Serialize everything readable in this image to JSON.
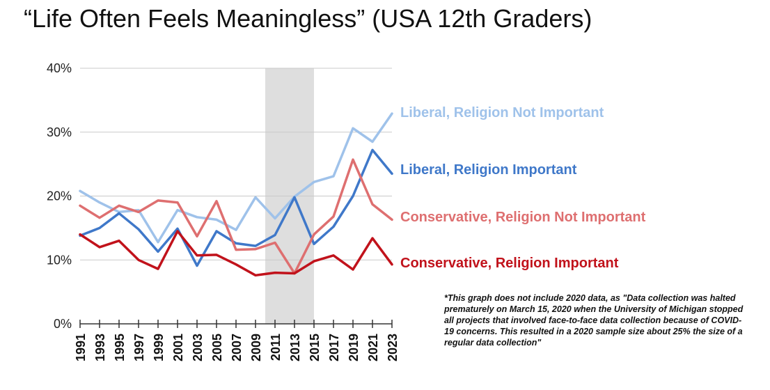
{
  "chart_data": {
    "type": "line",
    "title": "“Life Often Feels Meaningless” (USA 12th Graders)",
    "xlabel": "",
    "ylabel": "",
    "x": [
      1991,
      1992,
      1993,
      1994,
      1995,
      1996,
      1997,
      1998,
      1999,
      2000,
      2001,
      2002,
      2003,
      2004,
      2005,
      2006,
      2007,
      2008,
      2009,
      2010,
      2011,
      2012,
      2013,
      2014,
      2015,
      2016,
      2017,
      2018,
      2019,
      2020,
      2021,
      2022,
      2023
    ],
    "x_tick_labels": [
      "1991",
      "1993",
      "1995",
      "1997",
      "1999",
      "2001",
      "2003",
      "2005",
      "2007",
      "2009",
      "2011",
      "2013",
      "2015",
      "2017",
      "2019",
      "2021",
      "2023"
    ],
    "y_ticks": [
      "0%",
      "10%",
      "20%",
      "30%",
      "40%"
    ],
    "ylim": [
      0,
      40
    ],
    "grid": true,
    "shaded_region": [
      2010,
      2015
    ],
    "legend": "direct labels at right end of lines",
    "series": [
      {
        "name": "Liberal, Religion Not Important",
        "color": "#9fc2ea",
        "points": [
          [
            1991,
            20.8
          ],
          [
            1993,
            19.0
          ],
          [
            1995,
            17.5
          ],
          [
            1997,
            17.8
          ],
          [
            1999,
            12.8
          ],
          [
            2001,
            17.8
          ],
          [
            2003,
            16.7
          ],
          [
            2005,
            16.3
          ],
          [
            2007,
            14.7
          ],
          [
            2009,
            19.8
          ],
          [
            2011,
            16.5
          ],
          [
            2013,
            19.9
          ],
          [
            2015,
            22.2
          ],
          [
            2017,
            23.1
          ],
          [
            2019,
            30.6
          ],
          [
            2021,
            28.5
          ],
          [
            2023,
            32.9
          ]
        ]
      },
      {
        "name": "Liberal, Religion Important",
        "color": "#3f78c9",
        "points": [
          [
            1991,
            13.8
          ],
          [
            1993,
            15.0
          ],
          [
            1995,
            17.3
          ],
          [
            1997,
            14.8
          ],
          [
            1999,
            11.3
          ],
          [
            2001,
            14.9
          ],
          [
            2003,
            9.1
          ],
          [
            2005,
            14.5
          ],
          [
            2007,
            12.6
          ],
          [
            2009,
            12.2
          ],
          [
            2011,
            13.9
          ],
          [
            2013,
            19.8
          ],
          [
            2015,
            12.5
          ],
          [
            2017,
            15.2
          ],
          [
            2019,
            20.0
          ],
          [
            2021,
            27.2
          ],
          [
            2023,
            23.5
          ]
        ]
      },
      {
        "name": "Conservative, Religion Not Important",
        "color": "#de6f70",
        "points": [
          [
            1991,
            18.5
          ],
          [
            1993,
            16.6
          ],
          [
            1995,
            18.5
          ],
          [
            1997,
            17.5
          ],
          [
            1999,
            19.3
          ],
          [
            2001,
            19.0
          ],
          [
            2003,
            13.7
          ],
          [
            2005,
            19.2
          ],
          [
            2007,
            11.6
          ],
          [
            2009,
            11.7
          ],
          [
            2011,
            12.7
          ],
          [
            2013,
            7.9
          ],
          [
            2015,
            14.0
          ],
          [
            2017,
            16.8
          ],
          [
            2019,
            25.7
          ],
          [
            2021,
            18.7
          ],
          [
            2023,
            16.3
          ]
        ]
      },
      {
        "name": "Conservative, Religion Important",
        "color": "#c1121b",
        "points": [
          [
            1991,
            14.0
          ],
          [
            1993,
            12.0
          ],
          [
            1995,
            13.0
          ],
          [
            1997,
            10.0
          ],
          [
            1999,
            8.6
          ],
          [
            2001,
            14.5
          ],
          [
            2003,
            10.7
          ],
          [
            2005,
            10.8
          ],
          [
            2007,
            9.3
          ],
          [
            2009,
            7.6
          ],
          [
            2011,
            8.0
          ],
          [
            2013,
            7.9
          ],
          [
            2015,
            9.8
          ],
          [
            2017,
            10.7
          ],
          [
            2019,
            8.5
          ],
          [
            2021,
            13.4
          ],
          [
            2023,
            9.3
          ]
        ]
      }
    ],
    "footnote": "*This graph does not include 2020 data, as \"Data collection was halted prematurely on March 15, 2020 when the University of Michigan stopped all projects that involved face-to-face data collection because of COVID-19 concerns. This resulted in a 2020 sample size about 25% the size of a regular data collection\""
  }
}
